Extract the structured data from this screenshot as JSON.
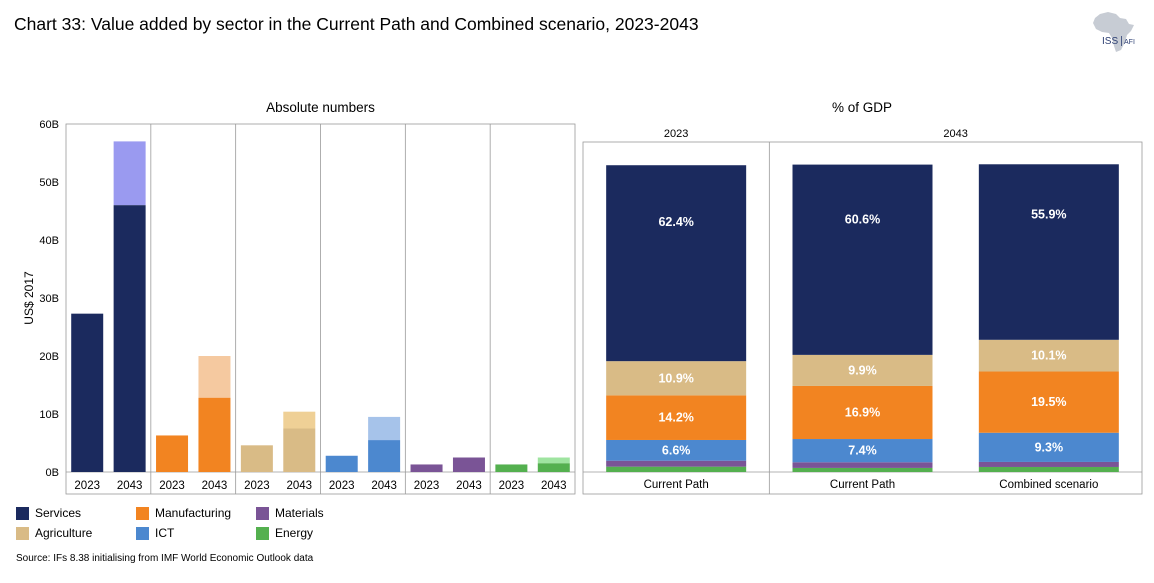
{
  "title": "Chart 33: Value added by sector in the Current Path and Combined scenario, 2023-2043",
  "logo": {
    "text": "ISS",
    "subtext": "AFI"
  },
  "source": "Source: IFs 8.38 initialising from IMF World Economic Outlook data",
  "colors": {
    "Services": "#1b2a5e",
    "Services_light": "#9a9af0",
    "Manufacturing": "#f28421",
    "Manufacturing_light": "#f5c9a0",
    "Agriculture": "#d9bb86",
    "Agriculture_light": "#efd096",
    "ICT": "#4c88cf",
    "ICT_light": "#a6c3ea",
    "Materials": "#7a5496",
    "Materials_light": "#a58ac4",
    "Energy": "#54b04f",
    "Energy_light": "#9fe4a0",
    "axis": "#9a9a9a"
  },
  "legend": [
    {
      "label": "Services",
      "color": "#1b2a5e"
    },
    {
      "label": "Manufacturing",
      "color": "#f28421"
    },
    {
      "label": "Materials",
      "color": "#7a5496"
    },
    {
      "label": "Agriculture",
      "color": "#d9bb86"
    },
    {
      "label": "ICT",
      "color": "#4c88cf"
    },
    {
      "label": "Energy",
      "color": "#54b04f"
    }
  ],
  "chart_data": [
    {
      "type": "bar",
      "title": "Absolute numbers",
      "ylabel": "US$ 2017",
      "ylim": [
        0,
        60
      ],
      "yticks": [
        0,
        10,
        20,
        30,
        40,
        50,
        60
      ],
      "ytick_labels": [
        "0B",
        "10B",
        "20B",
        "30B",
        "40B",
        "50B",
        "60B"
      ],
      "groups": [
        {
          "sector": "Services",
          "bars": [
            {
              "year": "2023",
              "current_path": 27.3,
              "combined": 27.3
            },
            {
              "year": "2043",
              "current_path": 46.0,
              "combined": 57.0
            }
          ]
        },
        {
          "sector": "Manufacturing",
          "bars": [
            {
              "year": "2023",
              "current_path": 6.3,
              "combined": 6.3
            },
            {
              "year": "2043",
              "current_path": 12.8,
              "combined": 20.0
            }
          ]
        },
        {
          "sector": "Agriculture",
          "bars": [
            {
              "year": "2023",
              "current_path": 4.6,
              "combined": 4.6
            },
            {
              "year": "2043",
              "current_path": 7.5,
              "combined": 10.4
            }
          ]
        },
        {
          "sector": "ICT",
          "bars": [
            {
              "year": "2023",
              "current_path": 2.8,
              "combined": 2.8
            },
            {
              "year": "2043",
              "current_path": 5.5,
              "combined": 9.5
            }
          ]
        },
        {
          "sector": "Materials",
          "bars": [
            {
              "year": "2023",
              "current_path": 1.3,
              "combined": 1.3
            },
            {
              "year": "2043",
              "current_path": 2.5,
              "combined": 2.5
            }
          ]
        },
        {
          "sector": "Energy",
          "bars": [
            {
              "year": "2023",
              "current_path": 1.3,
              "combined": 1.3
            },
            {
              "year": "2043",
              "current_path": 1.5,
              "combined": 2.5
            }
          ]
        }
      ]
    },
    {
      "type": "bar",
      "stacked": true,
      "title": "% of GDP",
      "period_labels": [
        "2023",
        "2043"
      ],
      "categories": [
        "Current Path",
        "Current Path",
        "Combined scenario"
      ],
      "category_period": [
        "2023",
        "2043",
        "2043"
      ],
      "series_order": [
        "Energy",
        "Materials",
        "ICT",
        "Manufacturing",
        "Agriculture",
        "Services"
      ],
      "values": {
        "Energy": [
          1.7,
          1.3,
          1.6
        ],
        "Materials": [
          1.9,
          1.8,
          1.6
        ],
        "ICT": [
          6.6,
          7.4,
          9.3
        ],
        "Manufacturing": [
          14.2,
          16.9,
          19.5
        ],
        "Agriculture": [
          10.9,
          9.9,
          10.1
        ],
        "Services": [
          62.4,
          60.6,
          55.9
        ]
      },
      "data_labels": {
        "ICT": [
          "6.6%",
          "7.4%",
          "9.3%"
        ],
        "Manufacturing": [
          "14.2%",
          "16.9%",
          "19.5%"
        ],
        "Agriculture": [
          "10.9%",
          "9.9%",
          "10.1%"
        ],
        "Services": [
          "62.4%",
          "60.6%",
          "55.9%"
        ]
      }
    }
  ]
}
